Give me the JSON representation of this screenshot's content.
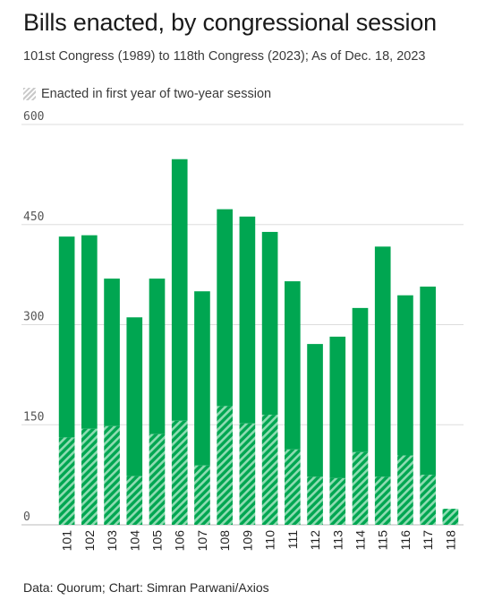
{
  "title": "Bills enacted, by congressional session",
  "subtitle": "101st Congress (1989) to 118th Congress (2023); As of Dec. 18, 2023",
  "legend": {
    "first_year_label": "Enacted in first year of two-year session"
  },
  "source": "Data: Quorum; Chart: Simran Parwani/Axios",
  "colors": {
    "bar": "#00a651",
    "hatch_light": "#7fd4a4",
    "grid": "#dddddd"
  },
  "chart_data": {
    "type": "bar",
    "stacked": true,
    "categories": [
      "101",
      "102",
      "103",
      "104",
      "105",
      "106",
      "107",
      "108",
      "109",
      "110",
      "111",
      "112",
      "113",
      "114",
      "115",
      "116",
      "117",
      "118"
    ],
    "series": [
      {
        "name": "Enacted in first year of two-year session",
        "values": [
          131,
          144,
          148,
          73,
          136,
          156,
          89,
          178,
          152,
          165,
          113,
          72,
          70,
          109,
          72,
          104,
          75,
          24
        ]
      },
      {
        "values": [
          301,
          290,
          221,
          238,
          233,
          392,
          261,
          295,
          310,
          274,
          252,
          199,
          212,
          216,
          345,
          240,
          282,
          0
        ]
      }
    ],
    "totals": [
      432,
      434,
      369,
      311,
      369,
      548,
      350,
      473,
      462,
      439,
      365,
      271,
      282,
      325,
      417,
      344,
      357,
      24
    ],
    "yticks": [
      0,
      150,
      300,
      450,
      600
    ],
    "ylim": [
      0,
      600
    ],
    "grid": true,
    "legend_position": "top-left"
  }
}
